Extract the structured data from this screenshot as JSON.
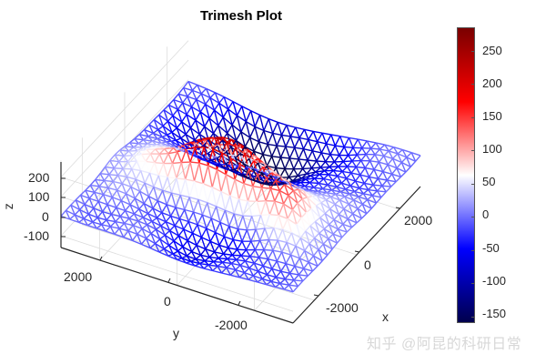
{
  "chart_data": {
    "type": "surface-trimesh",
    "title": "Trimesh Plot",
    "xlabel": "x",
    "ylabel": "y",
    "zlabel": "z",
    "x_ticks": [
      "-2000",
      "0",
      "2000"
    ],
    "y_ticks": [
      "2000",
      "0",
      "-2000"
    ],
    "z_ticks": [
      "200",
      "100",
      "0",
      "-100"
    ],
    "xlim": [
      -3000,
      3000
    ],
    "ylim": [
      -3000,
      3000
    ],
    "zlim": [
      -160,
      285
    ],
    "colorbar": {
      "ticks": [
        "250",
        "200",
        "150",
        "100",
        "50",
        "0",
        "-50",
        "-100",
        "-150"
      ],
      "range": [
        -160,
        285
      ],
      "colormap": "blue-white-red",
      "colors": {
        "low": "#00004d",
        "mid_low": "#0000ff",
        "mid": "#ffffff",
        "mid_high": "#ff0000",
        "high": "#7a0000"
      }
    },
    "surface": {
      "description": "Wireframe triangular mesh resembling a peaks-like terrain: main red peak (~250) near center-back, secondary red ridge toward front-right, low dark-blue plateau on right back side, blue low regions at front-left",
      "peak_max": 250,
      "min": -150,
      "grid_n": 26
    },
    "grid": true
  },
  "title": "Trimesh Plot",
  "axes": {
    "x_label": "x",
    "y_label": "y",
    "z_label": "z",
    "x_ticks": [
      "-2000",
      "0",
      "2000"
    ],
    "y_ticks": [
      "2000",
      "0",
      "-2000"
    ],
    "z_ticks": [
      "200",
      "100",
      "0",
      "-100"
    ]
  },
  "colorbar": {
    "ticks": [
      "250",
      "200",
      "150",
      "100",
      "50",
      "0",
      "-50",
      "-100",
      "-150"
    ]
  },
  "watermark": "知乎 @阿昆的科研日常"
}
